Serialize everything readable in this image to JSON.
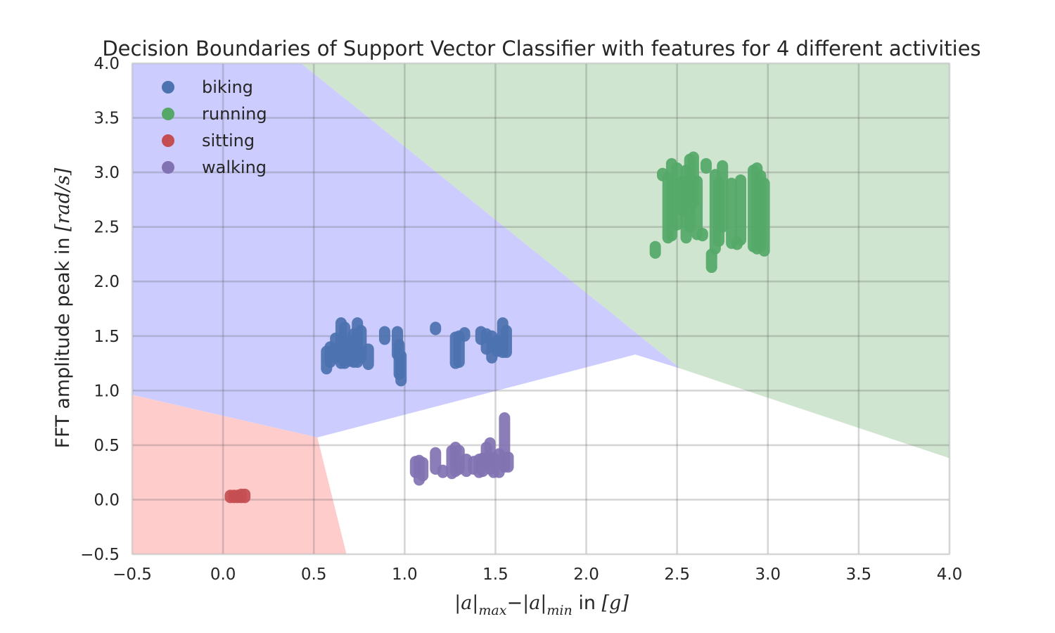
{
  "chart_data": {
    "type": "scatter",
    "title": "Decision Boundaries of Support Vector Classifier with features for 4 different activities",
    "xlabel": {
      "math_main": "|a|",
      "math_sub_max": "max",
      "minus": "−",
      "math_sub_min": "min",
      "plain": " in ",
      "unit": "[g]"
    },
    "ylabel": {
      "plain": "FFT amplitude peak in ",
      "unit": "[rad/s]"
    },
    "xlim": [
      -0.5,
      4.0
    ],
    "ylim": [
      -0.5,
      4.0
    ],
    "xticks": [
      -0.5,
      0.0,
      0.5,
      1.0,
      1.5,
      2.0,
      2.5,
      3.0,
      3.5,
      4.0
    ],
    "yticks": [
      -0.5,
      0.0,
      0.5,
      1.0,
      1.5,
      2.0,
      2.5,
      3.0,
      3.5,
      4.0
    ],
    "xtick_labels": [
      "−0.5",
      "0.0",
      "0.5",
      "1.0",
      "1.5",
      "2.0",
      "2.5",
      "3.0",
      "3.5",
      "4.0"
    ],
    "ytick_labels": [
      "−0.5",
      "0.0",
      "0.5",
      "1.0",
      "1.5",
      "2.0",
      "2.5",
      "3.0",
      "3.5",
      "4.0"
    ],
    "grid": true,
    "legend_position": "top-left",
    "regions": [
      {
        "name": "biking",
        "color": "#ccccff",
        "polygon": [
          [
            -0.5,
            4.0
          ],
          [
            0.43,
            4.0
          ],
          [
            2.52,
            1.2
          ],
          [
            2.27,
            1.33
          ],
          [
            0.52,
            0.57
          ],
          [
            -0.5,
            0.96
          ]
        ]
      },
      {
        "name": "running",
        "color": "#cfe5cf",
        "polygon": [
          [
            0.43,
            4.0
          ],
          [
            4.0,
            4.0
          ],
          [
            4.0,
            0.38
          ],
          [
            2.52,
            1.2
          ]
        ]
      },
      {
        "name": "sitting",
        "color": "#ffcccc",
        "polygon": [
          [
            -0.5,
            0.96
          ],
          [
            0.52,
            0.57
          ],
          [
            0.68,
            -0.5
          ],
          [
            -0.5,
            -0.5
          ]
        ]
      },
      {
        "name": "walking",
        "color": "#ffffff",
        "polygon": [
          [
            0.52,
            0.57
          ],
          [
            2.27,
            1.33
          ],
          [
            2.52,
            1.2
          ],
          [
            4.0,
            0.38
          ],
          [
            4.0,
            -0.5
          ],
          [
            0.68,
            -0.5
          ]
        ]
      }
    ],
    "series": [
      {
        "name": "biking",
        "color": "#4c72b0",
        "segments": [
          [
            0.57,
            1.2,
            1.36
          ],
          [
            0.59,
            1.26,
            1.4
          ],
          [
            0.62,
            1.3,
            1.48
          ],
          [
            0.65,
            1.25,
            1.62
          ],
          [
            0.67,
            1.25,
            1.58
          ],
          [
            0.7,
            1.27,
            1.45
          ],
          [
            0.72,
            1.26,
            1.52
          ],
          [
            0.74,
            1.26,
            1.62
          ],
          [
            0.76,
            1.3,
            1.55
          ],
          [
            0.8,
            1.24,
            1.38
          ],
          [
            0.89,
            1.47,
            1.54
          ],
          [
            0.96,
            1.33,
            1.54
          ],
          [
            0.97,
            1.15,
            1.42
          ],
          [
            0.98,
            1.09,
            1.32
          ],
          [
            1.17,
            1.56,
            1.58
          ],
          [
            1.28,
            1.25,
            1.49
          ],
          [
            1.3,
            1.26,
            1.5
          ],
          [
            1.33,
            1.5,
            1.53
          ],
          [
            1.42,
            1.47,
            1.54
          ],
          [
            1.45,
            1.38,
            1.52
          ],
          [
            1.48,
            1.3,
            1.5
          ],
          [
            1.51,
            1.36,
            1.46
          ],
          [
            1.54,
            1.35,
            1.62
          ],
          [
            1.56,
            1.35,
            1.55
          ]
        ]
      },
      {
        "name": "running",
        "color": "#55a868",
        "segments": [
          [
            2.38,
            2.26,
            2.32
          ],
          [
            2.42,
            2.97,
            2.99
          ],
          [
            2.45,
            2.4,
            2.95
          ],
          [
            2.47,
            2.42,
            3.08
          ],
          [
            2.5,
            2.52,
            3.04
          ],
          [
            2.53,
            2.65,
            2.92
          ],
          [
            2.55,
            2.4,
            3.02
          ],
          [
            2.57,
            2.5,
            3.12
          ],
          [
            2.59,
            2.72,
            3.14
          ],
          [
            2.61,
            2.43,
            2.92
          ],
          [
            2.64,
            2.42,
            2.44
          ],
          [
            2.66,
            3.04,
            3.08
          ],
          [
            2.69,
            2.13,
            2.25
          ],
          [
            2.71,
            2.3,
            2.98
          ],
          [
            2.73,
            2.37,
            2.91
          ],
          [
            2.75,
            2.5,
            3.06
          ],
          [
            2.8,
            2.35,
            2.9
          ],
          [
            2.83,
            2.34,
            2.36
          ],
          [
            2.85,
            2.38,
            2.93
          ],
          [
            2.92,
            2.32,
            3.02
          ],
          [
            2.94,
            2.3,
            3.04
          ],
          [
            2.96,
            2.32,
            2.97
          ],
          [
            2.98,
            2.28,
            2.9
          ]
        ]
      },
      {
        "name": "sitting",
        "color": "#c44e52",
        "segments": [
          [
            0.04,
            0.02,
            0.04
          ],
          [
            0.06,
            0.02,
            0.04
          ],
          [
            0.08,
            0.02,
            0.04
          ],
          [
            0.1,
            0.02,
            0.05
          ],
          [
            0.12,
            0.02,
            0.05
          ]
        ]
      },
      {
        "name": "walking",
        "color": "#8172b2",
        "segments": [
          [
            1.06,
            0.25,
            0.35
          ],
          [
            1.08,
            0.18,
            0.36
          ],
          [
            1.1,
            0.22,
            0.34
          ],
          [
            1.17,
            0.28,
            0.43
          ],
          [
            1.21,
            0.25,
            0.27
          ],
          [
            1.26,
            0.24,
            0.45
          ],
          [
            1.28,
            0.26,
            0.48
          ],
          [
            1.3,
            0.28,
            0.45
          ],
          [
            1.34,
            0.26,
            0.37
          ],
          [
            1.38,
            0.28,
            0.35
          ],
          [
            1.41,
            0.25,
            0.37
          ],
          [
            1.43,
            0.26,
            0.38
          ],
          [
            1.45,
            0.33,
            0.48
          ],
          [
            1.47,
            0.28,
            0.52
          ],
          [
            1.49,
            0.25,
            0.38
          ],
          [
            1.52,
            0.25,
            0.42
          ],
          [
            1.55,
            0.3,
            0.75
          ],
          [
            1.57,
            0.3,
            0.39
          ]
        ]
      }
    ]
  }
}
